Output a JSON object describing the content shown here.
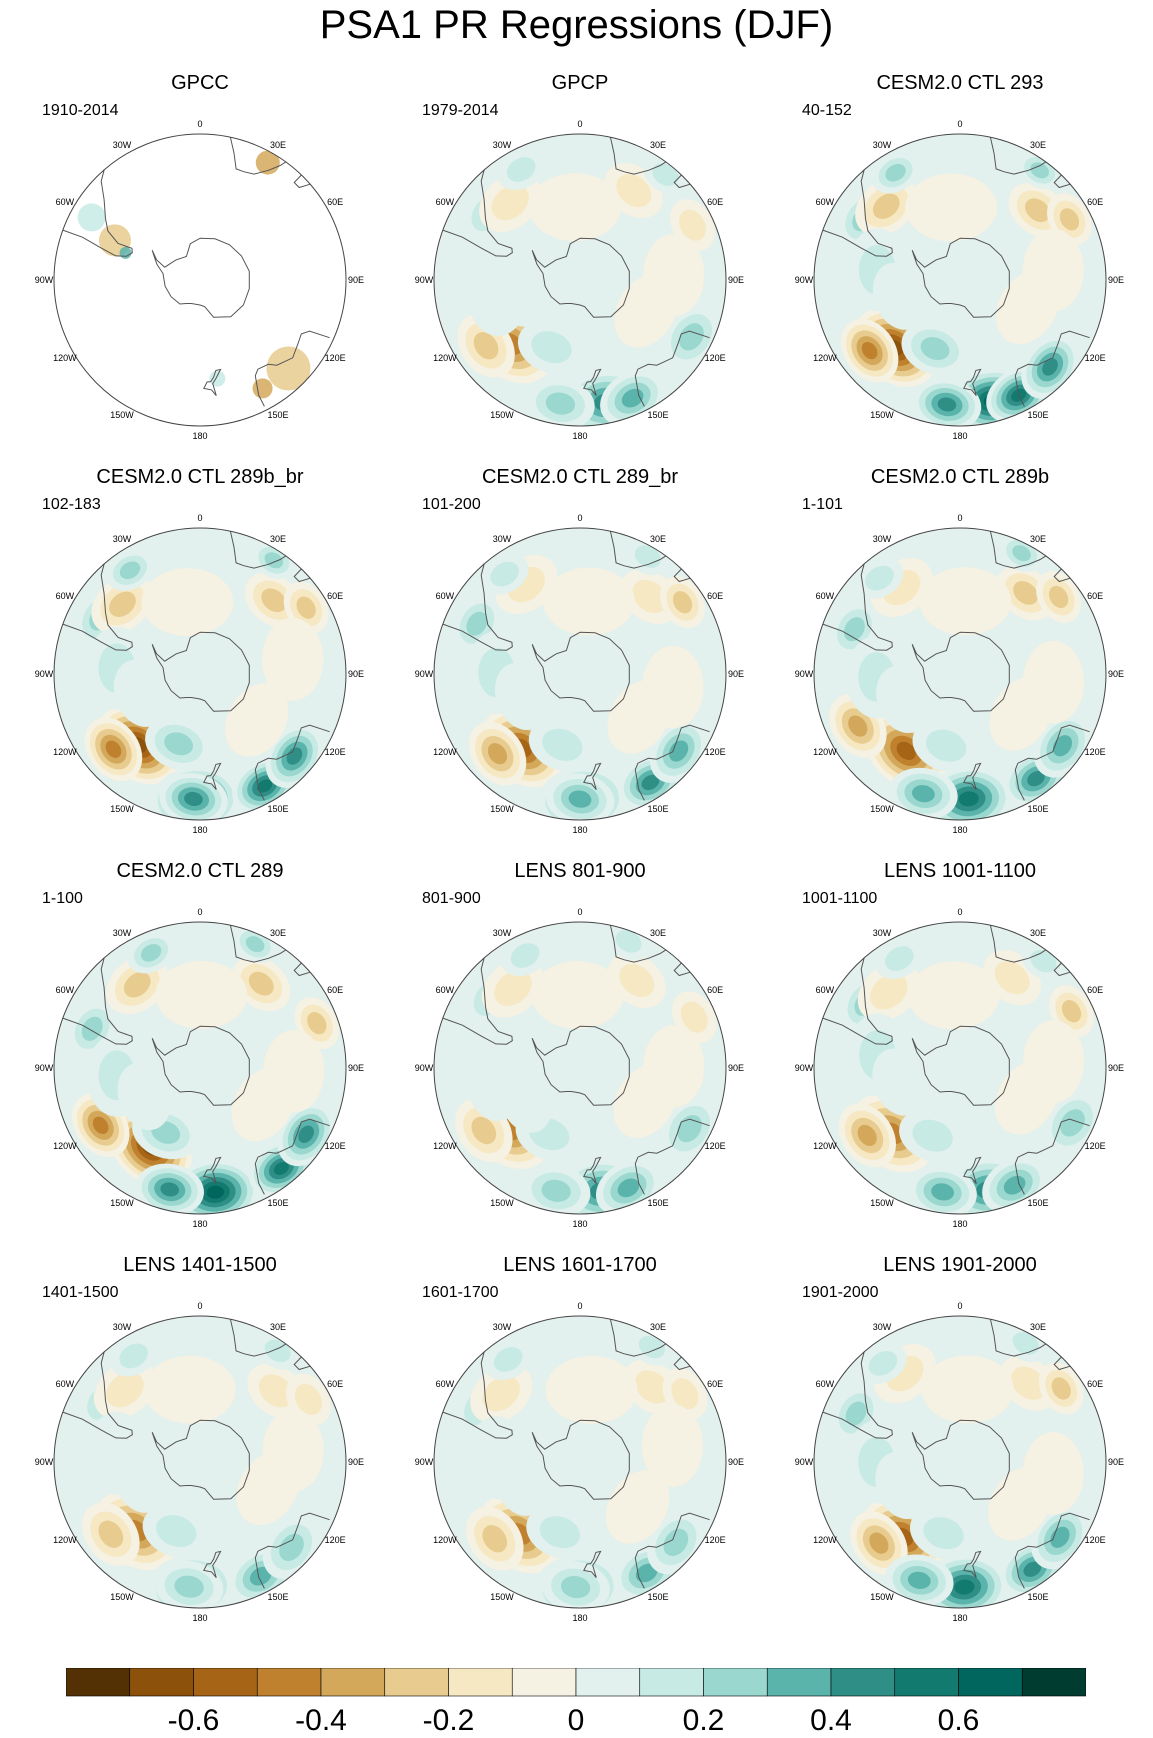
{
  "title": "PSA1 PR Regressions (DJF)",
  "colors": {
    "levels": [
      "#543005",
      "#8c510a",
      "#a66416",
      "#bf812d",
      "#d3a85b",
      "#e8cb8e",
      "#f6e8c3",
      "#f5f1e3",
      "#e2f0ee",
      "#c7eae5",
      "#9ad7ce",
      "#5ab4ac",
      "#2f8f87",
      "#137a70",
      "#01665e",
      "#003c30"
    ],
    "land_outline": "#555555",
    "boundary": "#444444"
  },
  "map_labels": {
    "lon_0": "0",
    "lon_30e": "30E",
    "lon_60e": "60E",
    "lon_90e": "90E",
    "lon_120e": "120E",
    "lon_150e": "150E",
    "lon_180": "180",
    "lon_150w": "150W",
    "lon_120w": "120W",
    "lon_90w": "90W",
    "lon_60w": "60W",
    "lon_30w": "30W"
  },
  "panels": [
    {
      "title": "GPCC",
      "period": "1910-2014",
      "observational_land_only": true
    },
    {
      "title": "GPCP",
      "period": "1979-2014",
      "pattern_strength": 0.7
    },
    {
      "title": "CESM2.0 CTL 293",
      "period": "40-152",
      "pattern_strength": 1.0
    },
    {
      "title": "CESM2.0 CTL 289b_br",
      "period": "102-183",
      "pattern_strength": 1.0
    },
    {
      "title": "CESM2.0 CTL 289_br",
      "period": "101-200",
      "pattern_strength": 0.8
    },
    {
      "title": "CESM2.0 CTL 289b",
      "period": "1-101",
      "pattern_strength": 0.85
    },
    {
      "title": "CESM2.0 CTL 289",
      "period": "1-100",
      "pattern_strength": 1.0
    },
    {
      "title": "LENS 801-900",
      "period": "801-900",
      "pattern_strength": 0.65
    },
    {
      "title": "LENS 1001-1100",
      "period": "1001-1100",
      "pattern_strength": 0.75
    },
    {
      "title": "LENS 1401-1500",
      "period": "1401-1500",
      "pattern_strength": 0.7
    },
    {
      "title": "LENS 1601-1700",
      "period": "1601-1700",
      "pattern_strength": 0.65
    },
    {
      "title": "LENS 1901-2000",
      "period": "1901-2000",
      "pattern_strength": 0.8
    }
  ],
  "colorbar": {
    "labels": [
      "-0.6",
      "-0.4",
      "-0.2",
      "0",
      "0.2",
      "0.4",
      "0.6"
    ],
    "label_values": [
      -0.6,
      -0.4,
      -0.2,
      0,
      0.2,
      0.4,
      0.6
    ],
    "min": -0.8,
    "max": 0.8,
    "step": 0.1
  }
}
